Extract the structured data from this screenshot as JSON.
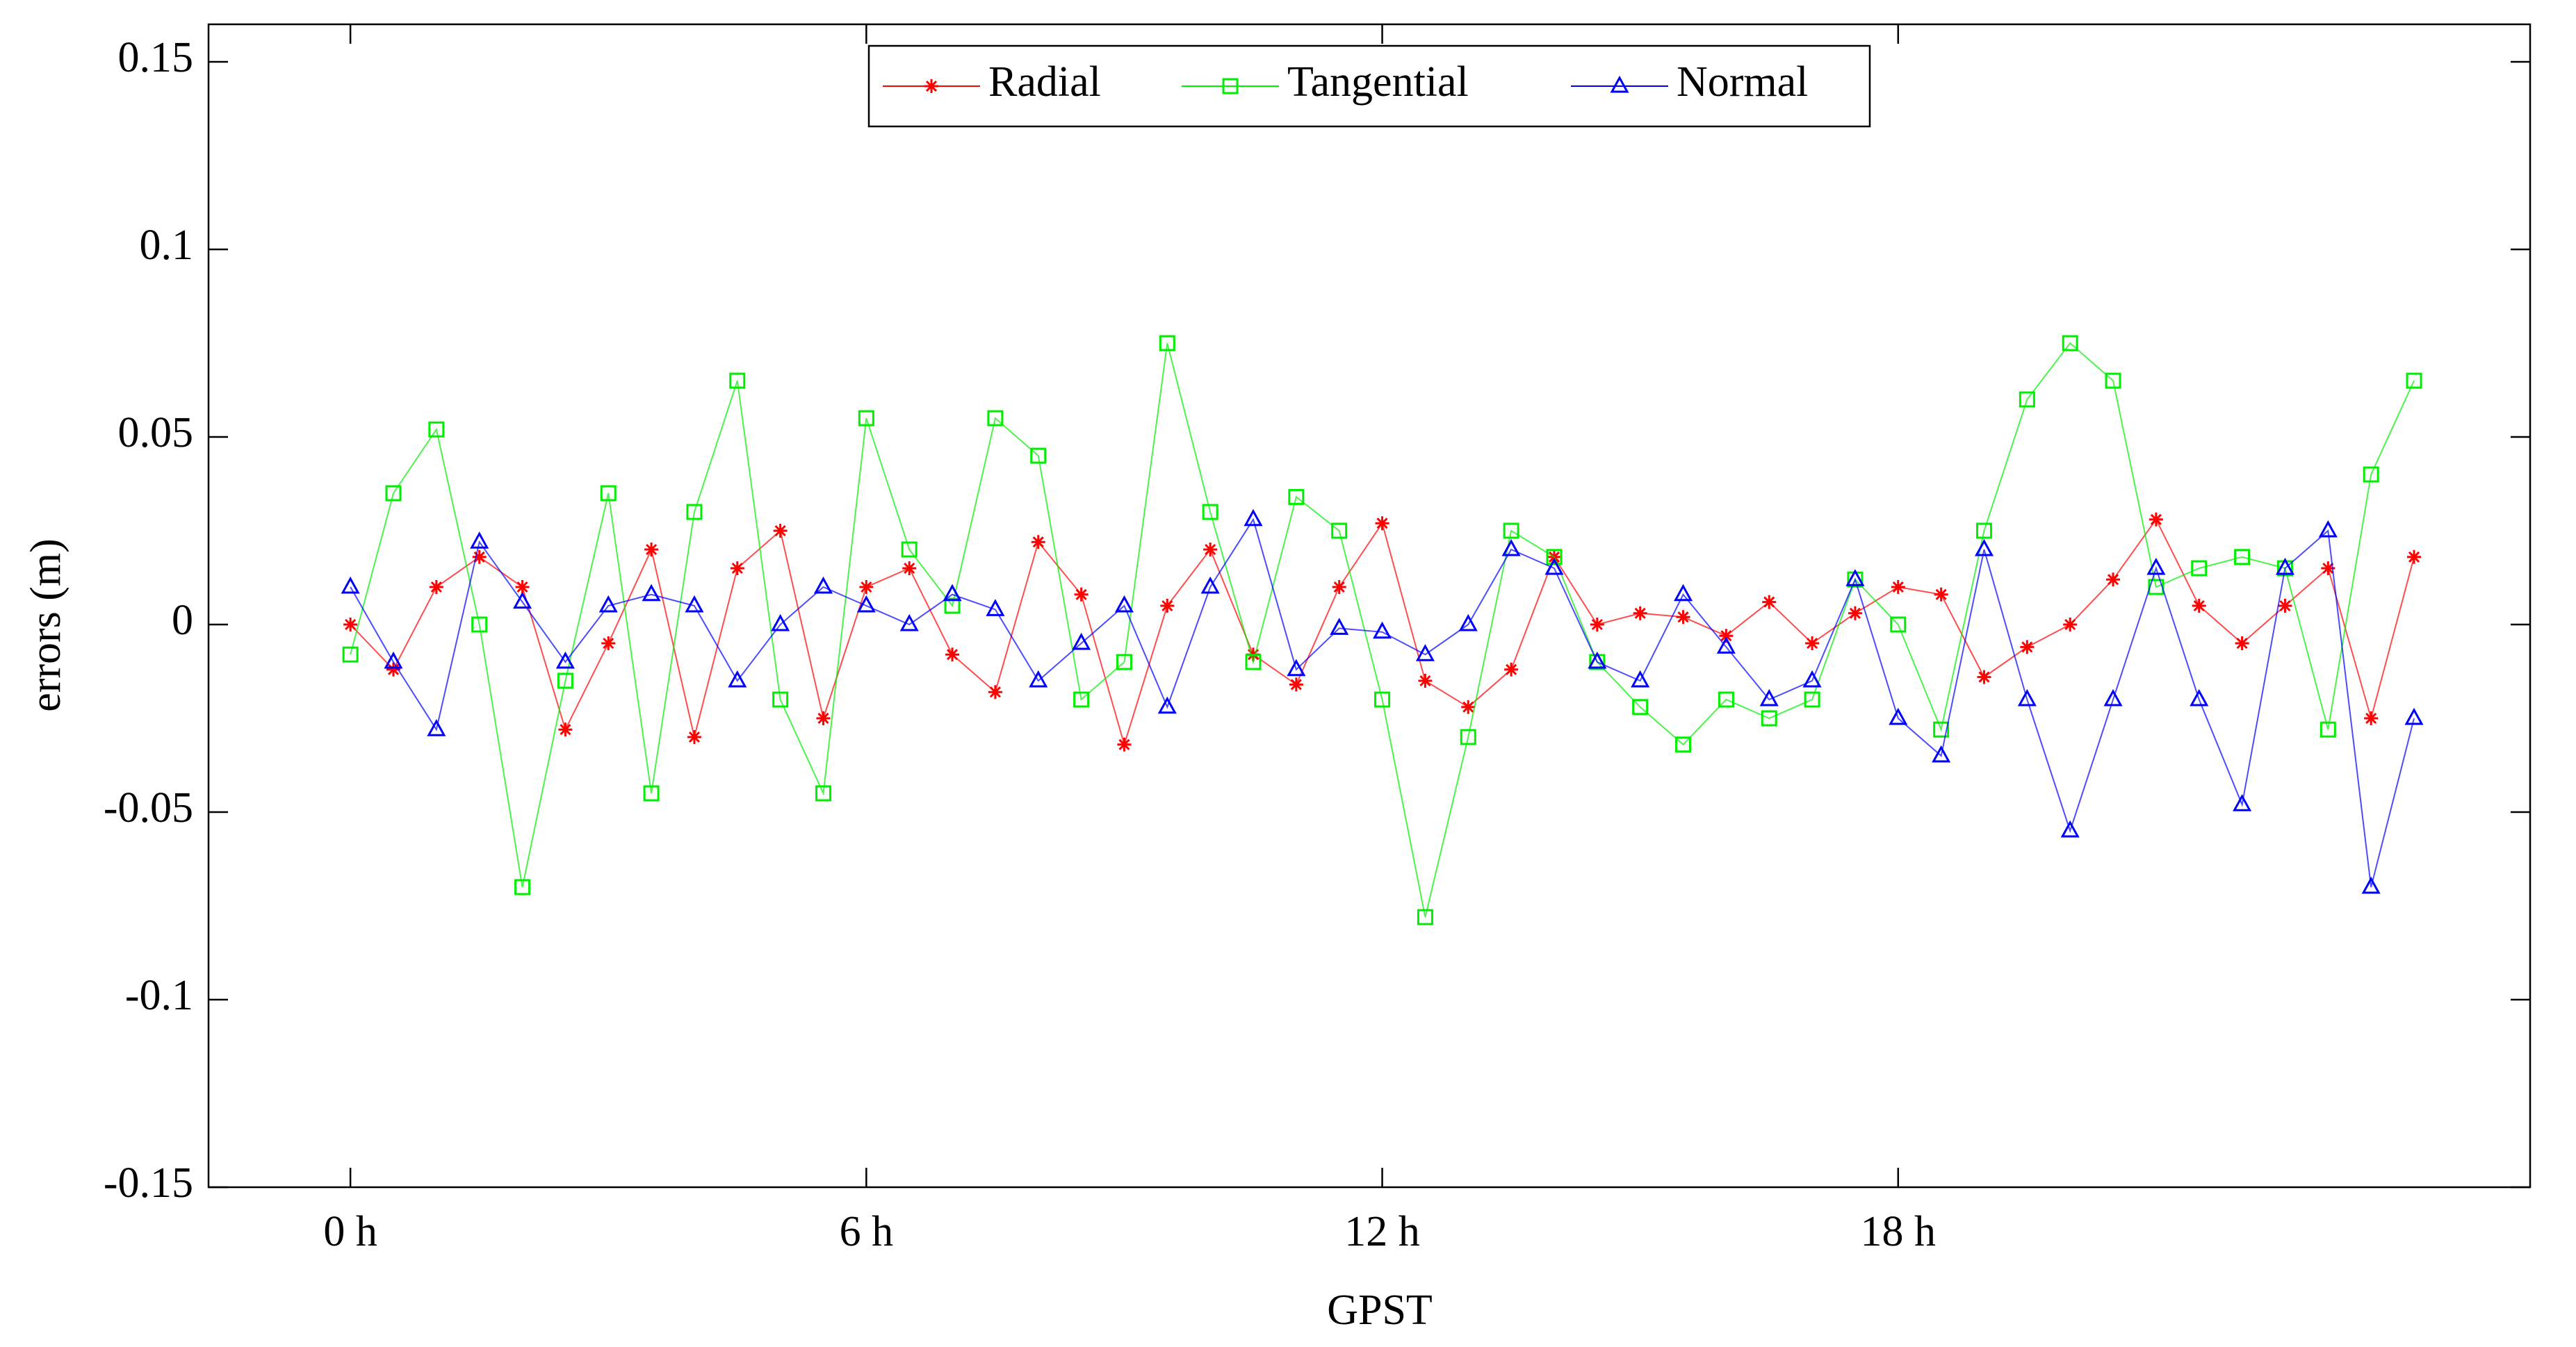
{
  "chart_data": {
    "type": "line",
    "xlabel": "GPST",
    "ylabel": "errors (m)",
    "x": [
      0,
      0.5,
      1,
      1.5,
      2,
      2.5,
      3,
      3.5,
      4,
      4.5,
      5,
      5.5,
      6,
      6.5,
      7,
      7.5,
      8,
      8.5,
      9,
      9.5,
      10,
      10.5,
      11,
      11.5,
      12,
      12.5,
      13,
      13.5,
      14,
      14.5,
      15,
      15.5,
      16,
      16.5,
      17,
      17.5,
      18,
      18.5,
      19,
      19.5,
      20,
      20.5,
      21,
      21.5,
      22,
      22.5,
      23,
      23.5,
      24
    ],
    "series": [
      {
        "name": "Radial",
        "color": "#ff0000",
        "marker": "asterisk",
        "values": [
          0,
          -0.012,
          0.01,
          0.018,
          0.01,
          -0.028,
          -0.005,
          0.02,
          -0.03,
          0.015,
          0.025,
          -0.025,
          0.01,
          0.015,
          -0.008,
          -0.018,
          0.022,
          0.008,
          -0.032,
          0.005,
          0.02,
          -0.008,
          -0.016,
          0.01,
          0.027,
          -0.015,
          -0.022,
          -0.012,
          0.018,
          0.0,
          0.003,
          0.002,
          -0.003,
          0.006,
          -0.005,
          0.003,
          0.01,
          0.008,
          -0.014,
          -0.006,
          0.0,
          0.012,
          0.028,
          0.005,
          -0.005,
          0.005,
          0.015,
          -0.025,
          0.018
        ]
      },
      {
        "name": "Tangential",
        "color": "#00ee00",
        "marker": "square",
        "values": [
          -0.008,
          0.035,
          0.052,
          0.0,
          -0.07,
          -0.015,
          0.035,
          -0.045,
          0.03,
          0.065,
          -0.02,
          -0.045,
          0.055,
          0.02,
          0.005,
          0.055,
          0.045,
          -0.02,
          -0.01,
          0.075,
          0.03,
          -0.01,
          0.034,
          0.025,
          -0.02,
          -0.078,
          -0.03,
          0.025,
          0.018,
          -0.01,
          -0.022,
          -0.032,
          -0.02,
          -0.025,
          -0.02,
          0.012,
          0.0,
          -0.028,
          0.025,
          0.06,
          0.075,
          0.065,
          0.01,
          0.015,
          0.018,
          0.015,
          -0.028,
          0.04,
          0.065
        ]
      },
      {
        "name": "Normal",
        "color": "#0000ff",
        "marker": "triangle",
        "values": [
          0.01,
          -0.01,
          -0.028,
          0.022,
          0.006,
          -0.01,
          0.005,
          0.008,
          0.005,
          -0.015,
          0.0,
          0.01,
          0.005,
          0.0,
          0.008,
          0.004,
          -0.015,
          -0.005,
          0.005,
          -0.022,
          0.01,
          0.028,
          -0.012,
          -0.001,
          -0.002,
          -0.008,
          0.0,
          0.02,
          0.015,
          -0.01,
          -0.015,
          0.008,
          -0.006,
          -0.02,
          -0.015,
          0.012,
          -0.025,
          -0.035,
          0.02,
          -0.02,
          -0.055,
          -0.02,
          0.015,
          -0.02,
          -0.048,
          0.015,
          0.025,
          -0.07,
          -0.025
        ]
      }
    ],
    "xlim": [
      -1.65,
      25.35
    ],
    "xticks": [
      {
        "value": 0,
        "label": "0 h"
      },
      {
        "value": 6,
        "label": "6 h"
      },
      {
        "value": 12,
        "label": "12 h"
      },
      {
        "value": 18,
        "label": "18 h"
      }
    ],
    "ylim": [
      -0.15,
      0.16
    ],
    "yticks": [
      -0.15,
      -0.1,
      -0.05,
      0,
      0.05,
      0.1,
      0.15
    ],
    "legend": "upper center",
    "grid": false
  }
}
